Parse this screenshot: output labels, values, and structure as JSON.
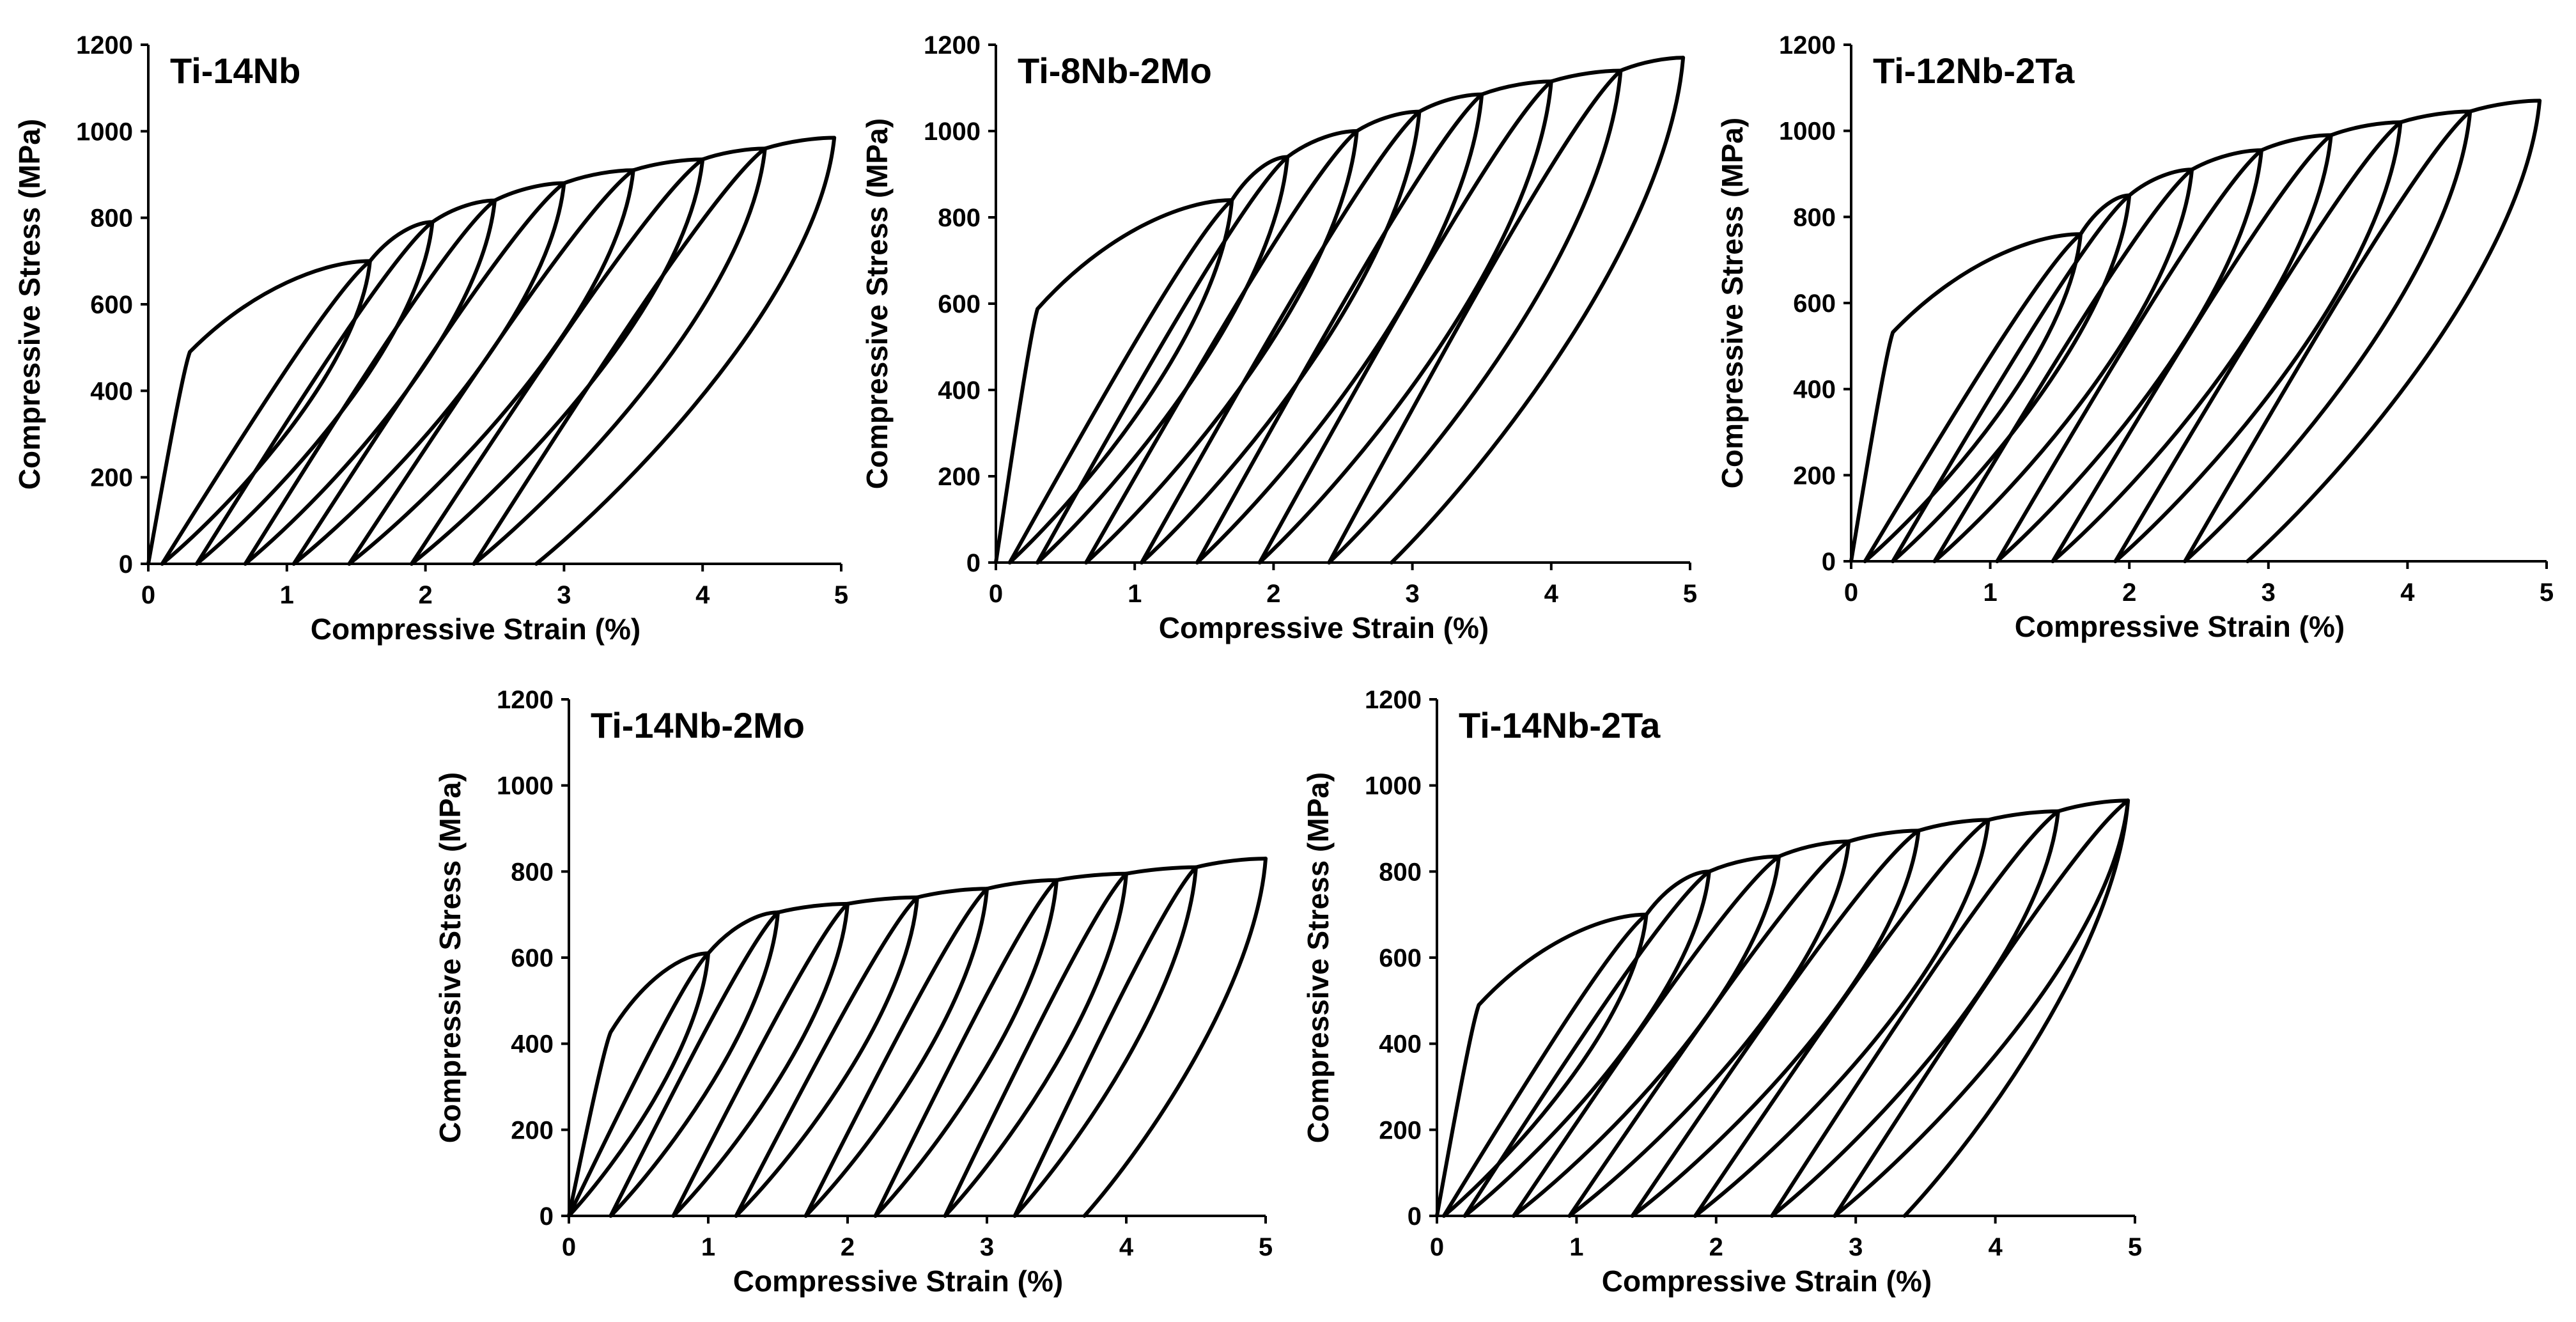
{
  "chart_data": [
    {
      "type": "line",
      "title": "Ti-14Nb",
      "xlabel": "Compressive Strain (%)",
      "ylabel": "Compressive Stress (MPa)",
      "xlim": [
        0,
        5
      ],
      "ylim": [
        0,
        1200
      ],
      "xticks": [
        "0",
        "1",
        "2",
        "3",
        "4",
        "5"
      ],
      "yticks": [
        "0",
        "200",
        "400",
        "600",
        "800",
        "1000",
        "1200"
      ],
      "cycles": [
        {
          "max_strain": 1.6,
          "max_stress": 700,
          "residual_strain": 0.1
        },
        {
          "max_strain": 2.05,
          "max_stress": 790,
          "residual_strain": 0.35
        },
        {
          "max_strain": 2.5,
          "max_stress": 840,
          "residual_strain": 0.7
        },
        {
          "max_strain": 3.0,
          "max_stress": 880,
          "residual_strain": 1.05
        },
        {
          "max_strain": 3.5,
          "max_stress": 910,
          "residual_strain": 1.45
        },
        {
          "max_strain": 4.0,
          "max_stress": 935,
          "residual_strain": 1.9
        },
        {
          "max_strain": 4.45,
          "max_stress": 960,
          "residual_strain": 2.35
        },
        {
          "max_strain": 4.95,
          "max_stress": 985,
          "residual_strain": 2.8
        }
      ]
    },
    {
      "type": "line",
      "title": "Ti-8Nb-2Mo",
      "xlabel": "Compressive Strain (%)",
      "ylabel": "Compressive Stress (MPa)",
      "xlim": [
        0,
        5
      ],
      "ylim": [
        0,
        1200
      ],
      "xticks": [
        "0",
        "1",
        "2",
        "3",
        "4",
        "5"
      ],
      "yticks": [
        "0",
        "200",
        "400",
        "600",
        "800",
        "1000",
        "1200"
      ],
      "cycles": [
        {
          "max_strain": 1.7,
          "max_stress": 840,
          "residual_strain": 0.1
        },
        {
          "max_strain": 2.1,
          "max_stress": 940,
          "residual_strain": 0.3
        },
        {
          "max_strain": 2.6,
          "max_stress": 1000,
          "residual_strain": 0.65
        },
        {
          "max_strain": 3.05,
          "max_stress": 1045,
          "residual_strain": 1.05
        },
        {
          "max_strain": 3.5,
          "max_stress": 1085,
          "residual_strain": 1.45
        },
        {
          "max_strain": 4.0,
          "max_stress": 1115,
          "residual_strain": 1.9
        },
        {
          "max_strain": 4.5,
          "max_stress": 1140,
          "residual_strain": 2.4
        },
        {
          "max_strain": 4.95,
          "max_stress": 1170,
          "residual_strain": 2.85
        }
      ]
    },
    {
      "type": "line",
      "title": "Ti-12Nb-2Ta",
      "xlabel": "Compressive Strain (%)",
      "ylabel": "Compressive Stress (MPa)",
      "xlim": [
        0,
        5
      ],
      "ylim": [
        0,
        1200
      ],
      "xticks": [
        "0",
        "1",
        "2",
        "3",
        "4",
        "5"
      ],
      "yticks": [
        "0",
        "200",
        "400",
        "600",
        "800",
        "1000",
        "1200"
      ],
      "cycles": [
        {
          "max_strain": 1.65,
          "max_stress": 760,
          "residual_strain": 0.1
        },
        {
          "max_strain": 2.0,
          "max_stress": 850,
          "residual_strain": 0.3
        },
        {
          "max_strain": 2.45,
          "max_stress": 910,
          "residual_strain": 0.6
        },
        {
          "max_strain": 2.95,
          "max_stress": 955,
          "residual_strain": 1.05
        },
        {
          "max_strain": 3.45,
          "max_stress": 990,
          "residual_strain": 1.45
        },
        {
          "max_strain": 3.95,
          "max_stress": 1020,
          "residual_strain": 1.9
        },
        {
          "max_strain": 4.45,
          "max_stress": 1045,
          "residual_strain": 2.4
        },
        {
          "max_strain": 4.95,
          "max_stress": 1070,
          "residual_strain": 2.85
        }
      ]
    },
    {
      "type": "line",
      "title": "Ti-14Nb-2Mo",
      "xlabel": "Compressive Strain (%)",
      "ylabel": "Compressive Stress (MPa)",
      "xlim": [
        0,
        5
      ],
      "ylim": [
        0,
        1200
      ],
      "xticks": [
        "0",
        "1",
        "2",
        "3",
        "4",
        "5"
      ],
      "yticks": [
        "0",
        "200",
        "400",
        "600",
        "800",
        "1000",
        "1200"
      ],
      "cycles": [
        {
          "max_strain": 1.0,
          "max_stress": 610,
          "residual_strain": 0.0
        },
        {
          "max_strain": 1.5,
          "max_stress": 705,
          "residual_strain": 0.3
        },
        {
          "max_strain": 2.0,
          "max_stress": 725,
          "residual_strain": 0.75
        },
        {
          "max_strain": 2.5,
          "max_stress": 740,
          "residual_strain": 1.2
        },
        {
          "max_strain": 3.0,
          "max_stress": 760,
          "residual_strain": 1.7
        },
        {
          "max_strain": 3.5,
          "max_stress": 780,
          "residual_strain": 2.2
        },
        {
          "max_strain": 4.0,
          "max_stress": 795,
          "residual_strain": 2.7
        },
        {
          "max_strain": 4.5,
          "max_stress": 810,
          "residual_strain": 3.2
        },
        {
          "max_strain": 5.0,
          "max_stress": 830,
          "residual_strain": 3.7
        }
      ]
    },
    {
      "type": "line",
      "title": "Ti-14Nb-2Ta",
      "xlabel": "Compressive Strain (%)",
      "ylabel": "Compressive Stress (MPa)",
      "xlim": [
        0,
        5
      ],
      "ylim": [
        0,
        1200
      ],
      "xticks": [
        "0",
        "1",
        "2",
        "3",
        "4",
        "5"
      ],
      "yticks": [
        "0",
        "200",
        "400",
        "600",
        "800",
        "1000",
        "1200"
      ],
      "cycles": [
        {
          "max_strain": 1.5,
          "max_stress": 700,
          "residual_strain": 0.05
        },
        {
          "max_strain": 1.95,
          "max_stress": 800,
          "residual_strain": 0.2
        },
        {
          "max_strain": 2.45,
          "max_stress": 835,
          "residual_strain": 0.55
        },
        {
          "max_strain": 2.95,
          "max_stress": 870,
          "residual_strain": 0.95
        },
        {
          "max_strain": 3.45,
          "max_stress": 895,
          "residual_strain": 1.4
        },
        {
          "max_strain": 3.95,
          "max_stress": 920,
          "residual_strain": 1.85
        },
        {
          "max_strain": 4.45,
          "max_stress": 940,
          "residual_strain": 2.4
        },
        {
          "max_strain": 4.95,
          "max_stress": 965,
          "residual_strain": 2.85
        },
        {
          "max_strain": 4.95,
          "max_stress": 965,
          "residual_strain": 3.35
        }
      ]
    }
  ]
}
